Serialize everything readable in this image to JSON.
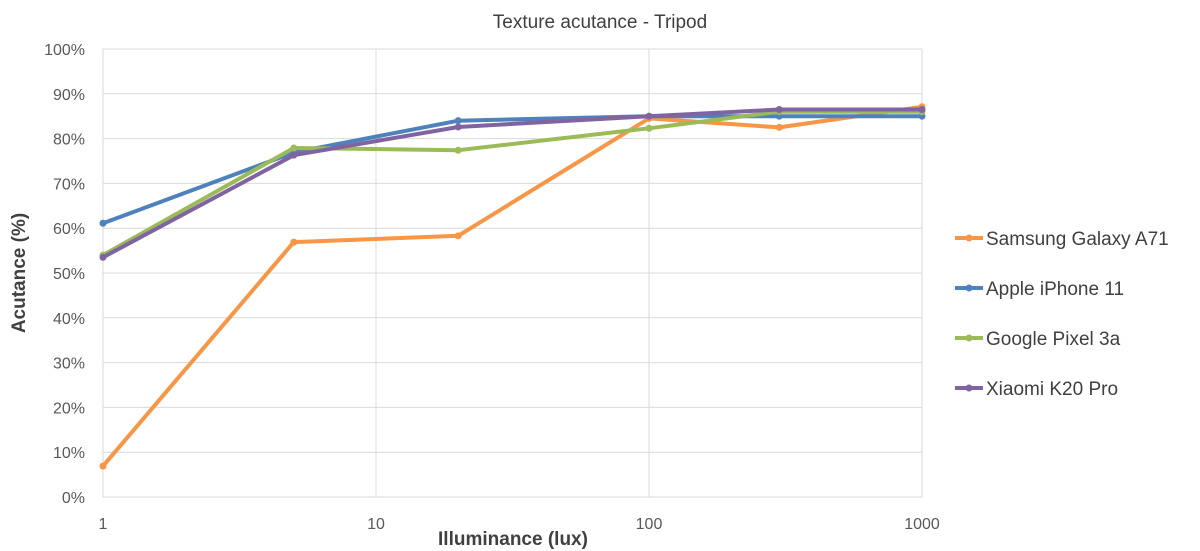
{
  "chart_data": {
    "type": "line",
    "title": "Texture acutance - Tripod",
    "xlabel": "Illuminance (lux)",
    "ylabel": "Acutance (%)",
    "xscale": "log",
    "xlim": [
      1,
      1000
    ],
    "ylim": [
      0,
      100
    ],
    "x_ticks": [
      "1",
      "10",
      "100",
      "1000"
    ],
    "y_ticks": [
      "0%",
      "10%",
      "20%",
      "30%",
      "40%",
      "50%",
      "60%",
      "70%",
      "80%",
      "90%",
      "100%"
    ],
    "grid": true,
    "legend_position": "right",
    "x": [
      1,
      5,
      20,
      100,
      300,
      1000
    ],
    "series": [
      {
        "name": "Samsung Galaxy A71",
        "color": "#f79646",
        "values": [
          6.9,
          56.9,
          58.3,
          84.5,
          82.5,
          87.1
        ]
      },
      {
        "name": "Apple iPhone 11",
        "color": "#4f81bd",
        "values": [
          61.1,
          76.9,
          84.0,
          85.0,
          85.0,
          85.0
        ]
      },
      {
        "name": "Google Pixel 3a",
        "color": "#9bbb59",
        "values": [
          54.0,
          77.9,
          77.4,
          82.3,
          86.0,
          86.0
        ]
      },
      {
        "name": "Xiaomi K20 Pro",
        "color": "#8064a2",
        "values": [
          53.5,
          76.3,
          82.6,
          85.0,
          86.5,
          86.5
        ]
      }
    ]
  }
}
